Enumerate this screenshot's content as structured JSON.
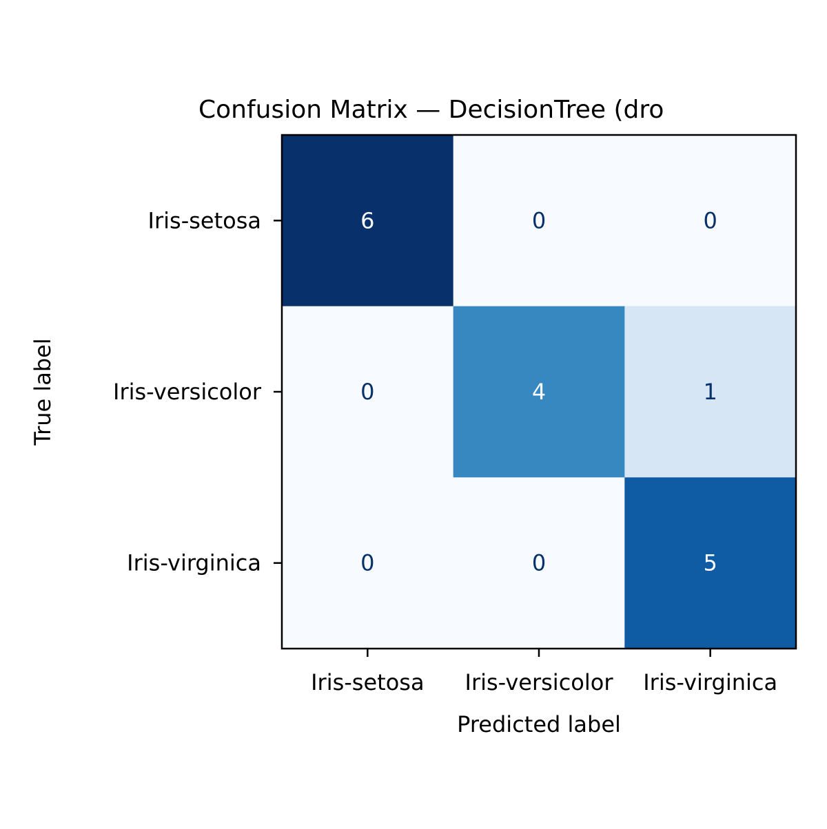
{
  "chart_data": {
    "type": "heatmap",
    "title": "Confusion Matrix — DecisionTree (dro",
    "xlabel": "Predicted label",
    "ylabel": "True label",
    "x_categories": [
      "Iris-setosa",
      "Iris-versicolor",
      "Iris-virginica"
    ],
    "y_categories": [
      "Iris-setosa",
      "Iris-versicolor",
      "Iris-virginica"
    ],
    "values": [
      [
        6,
        0,
        0
      ],
      [
        0,
        4,
        1
      ],
      [
        0,
        0,
        5
      ]
    ],
    "colormap": "Blues",
    "value_range": [
      0,
      6
    ],
    "grid": false,
    "colorbar": false
  }
}
